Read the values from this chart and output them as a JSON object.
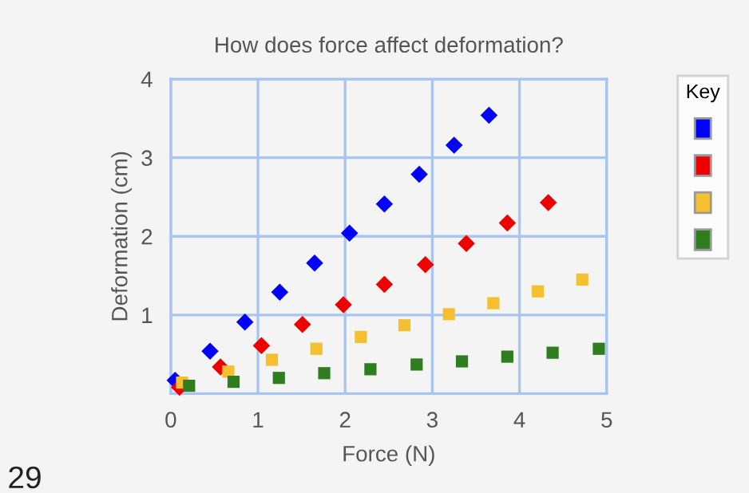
{
  "chart_data": {
    "type": "scatter",
    "title": "How does force affect deformation?",
    "xlabel": "Force (N)",
    "ylabel": "Deformation (cm)",
    "legend_title": "Key",
    "series": [
      {
        "color": "#0000ff",
        "marker": "diamond",
        "x": [
          0.05,
          0.45,
          0.85,
          1.25,
          1.65,
          2.05,
          2.45,
          2.85,
          3.25,
          3.65
        ],
        "values": [
          0.17,
          0.54,
          0.91,
          1.29,
          1.66,
          2.04,
          2.41,
          2.79,
          3.16,
          3.54
        ]
      },
      {
        "color": "#ee0000",
        "marker": "diamond",
        "x": [
          0.1,
          0.57,
          1.04,
          1.51,
          1.98,
          2.45,
          2.92,
          3.39,
          3.86,
          4.33
        ],
        "values": [
          0.08,
          0.34,
          0.61,
          0.88,
          1.13,
          1.39,
          1.64,
          1.91,
          2.17,
          2.43
        ]
      },
      {
        "color": "#f4c030",
        "marker": "square",
        "x": [
          0.13,
          0.66,
          1.16,
          1.67,
          2.18,
          2.68,
          3.19,
          3.7,
          4.21,
          4.72
        ],
        "values": [
          0.14,
          0.28,
          0.43,
          0.57,
          0.72,
          0.87,
          1.01,
          1.15,
          1.3,
          1.45
        ]
      },
      {
        "color": "#2e7d1e",
        "marker": "square",
        "x": [
          0.21,
          0.72,
          1.24,
          1.76,
          2.29,
          2.82,
          3.34,
          3.86,
          4.38,
          4.91
        ],
        "values": [
          0.1,
          0.15,
          0.2,
          0.26,
          0.31,
          0.37,
          0.41,
          0.47,
          0.52,
          0.57
        ]
      }
    ],
    "xlim": [
      0,
      5
    ],
    "ylim": [
      0,
      4
    ],
    "xticks": [
      0,
      1,
      2,
      3,
      4,
      5
    ],
    "yticks": [
      1,
      2,
      3,
      4
    ],
    "grid": true,
    "annotations": [
      "29"
    ]
  }
}
